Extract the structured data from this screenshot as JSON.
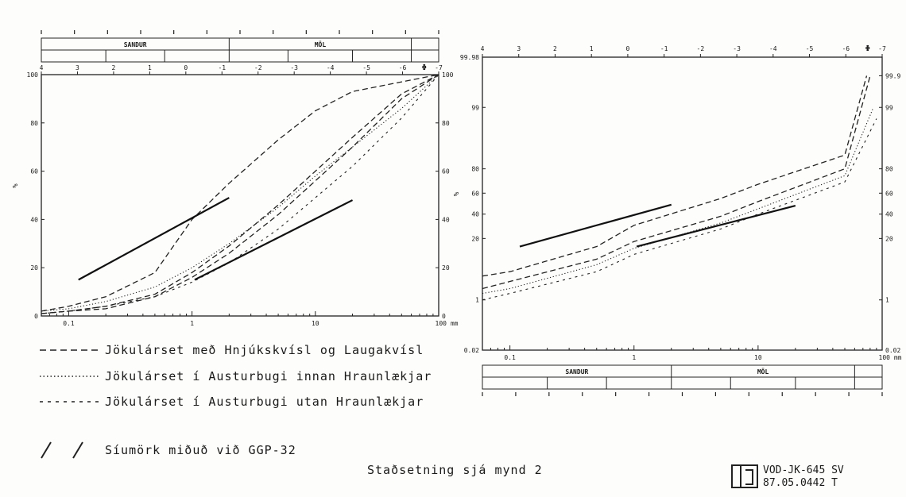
{
  "chart_data": [
    {
      "type": "line",
      "title": "",
      "ylabel": "%",
      "xscale": "log",
      "xlim": [
        0.06,
        100
      ],
      "ylim": [
        0,
        100
      ],
      "y_ticks": [
        "0",
        "20",
        "40",
        "60",
        "80",
        "100"
      ],
      "y2_ticks": [
        "0",
        "20",
        "40",
        "60",
        "80",
        "100"
      ],
      "x_ticks": [
        "0.1",
        "1",
        "10",
        "100 mm"
      ],
      "phi_ticks": [
        "4",
        "3",
        "2",
        "1",
        "0",
        "-1",
        "-2",
        "-3",
        "-4",
        "-5",
        "-6",
        "-7"
      ],
      "phi_label": "Φ",
      "size_bands": [
        "SANDUR",
        "MÖL"
      ],
      "series": [
        {
          "name": "Jökulárset með Hnjúkskvísl og Laugakvísl",
          "style": "dashed",
          "points": [
            [
              0.06,
              2
            ],
            [
              0.1,
              4
            ],
            [
              0.2,
              8
            ],
            [
              0.5,
              18
            ],
            [
              1,
              40
            ],
            [
              2,
              55
            ],
            [
              5,
              73
            ],
            [
              10,
              85
            ],
            [
              20,
              93
            ],
            [
              50,
              97
            ],
            [
              100,
              100
            ]
          ]
        },
        {
          "name": "Jökulárset með Hnjúkskvísl og Laugakvísl",
          "style": "dashed",
          "points": [
            [
              0.06,
              1
            ],
            [
              0.1,
              2
            ],
            [
              0.2,
              4
            ],
            [
              0.5,
              9
            ],
            [
              1,
              18
            ],
            [
              2,
              29
            ],
            [
              5,
              46
            ],
            [
              10,
              60
            ],
            [
              20,
              74
            ],
            [
              50,
              92
            ],
            [
              100,
              100
            ]
          ]
        },
        {
          "name": "Jökulárset með Hnjúkskvísl og Laugakvísl",
          "style": "dashed",
          "points": [
            [
              0.06,
              1
            ],
            [
              0.1,
              2
            ],
            [
              0.2,
              3
            ],
            [
              0.5,
              8
            ],
            [
              1,
              16
            ],
            [
              2,
              26
            ],
            [
              5,
              42
            ],
            [
              10,
              56
            ],
            [
              20,
              70
            ],
            [
              50,
              90
            ],
            [
              100,
              100
            ]
          ]
        },
        {
          "name": "Jökulárset í Austurbugi innan Hraunlækjar",
          "style": "dotted",
          "points": [
            [
              0.06,
              2
            ],
            [
              0.1,
              3
            ],
            [
              0.2,
              6
            ],
            [
              0.5,
              12
            ],
            [
              1,
              20
            ],
            [
              2,
              30
            ],
            [
              5,
              45
            ],
            [
              10,
              58
            ],
            [
              20,
              70
            ],
            [
              50,
              86
            ],
            [
              100,
              100
            ]
          ]
        },
        {
          "name": "Jökulárset í Austurbugi utan Hraunlækjar",
          "style": "dash-dot",
          "points": [
            [
              0.06,
              1
            ],
            [
              0.1,
              2
            ],
            [
              0.2,
              4
            ],
            [
              0.5,
              8
            ],
            [
              1,
              14
            ],
            [
              2,
              22
            ],
            [
              5,
              36
            ],
            [
              10,
              49
            ],
            [
              20,
              62
            ],
            [
              50,
              82
            ],
            [
              100,
              100
            ]
          ]
        }
      ],
      "limits": [
        {
          "name": "Síumörk miðuð við GGP-32",
          "points": [
            [
              0.12,
              15
            ],
            [
              2,
              49
            ]
          ]
        },
        {
          "name": "Síumörk miðuð við GGP-32",
          "points": [
            [
              1.05,
              15
            ],
            [
              20,
              48
            ]
          ]
        }
      ]
    },
    {
      "type": "line",
      "title": "",
      "ylabel": "%",
      "xscale": "log",
      "yscale": "probability",
      "xlim": [
        0.06,
        100
      ],
      "ylim": [
        0.02,
        99.98
      ],
      "y_ticks": [
        "0.02",
        "1",
        "20",
        "40",
        "60",
        "80",
        "99",
        "99.98"
      ],
      "y2_ticks": [
        "0.02",
        "1",
        "20",
        "40",
        "60",
        "80",
        "99",
        "99.9"
      ],
      "x_ticks": [
        "0.1",
        "1",
        "10",
        "100 mm"
      ],
      "phi_ticks": [
        "4",
        "3",
        "2",
        "1",
        "0",
        "-1",
        "-2",
        "-3",
        "-4",
        "-5",
        "-6",
        "-7"
      ],
      "phi_label": "Φ",
      "size_bands": [
        "SANDUR",
        "MÖL"
      ],
      "series": [
        {
          "name": "Jökulárset með Hnjúkskvísl og Laugakvísl",
          "style": "dashed",
          "points": [
            [
              0.06,
              4
            ],
            [
              0.1,
              5
            ],
            [
              0.5,
              15
            ],
            [
              1,
              30
            ],
            [
              5,
              55
            ],
            [
              10,
              68
            ],
            [
              50,
              88
            ],
            [
              75,
              99.9
            ]
          ]
        },
        {
          "name": "Jökulárset með Hnjúkskvísl og Laugakvísl",
          "style": "dashed",
          "points": [
            [
              0.06,
              2
            ],
            [
              0.1,
              3
            ],
            [
              0.5,
              9
            ],
            [
              1,
              18
            ],
            [
              5,
              38
            ],
            [
              10,
              52
            ],
            [
              50,
              80
            ],
            [
              80,
              99.9
            ]
          ]
        },
        {
          "name": "Jökulárset í Austurbugi innan Hraunlækjar",
          "style": "dotted",
          "points": [
            [
              0.06,
              1.5
            ],
            [
              0.1,
              2
            ],
            [
              0.5,
              7
            ],
            [
              1,
              14
            ],
            [
              5,
              32
            ],
            [
              10,
              45
            ],
            [
              50,
              75
            ],
            [
              85,
              99
            ]
          ]
        },
        {
          "name": "Jökulárset í Austurbugi utan Hraunlækjar",
          "style": "dash-dot",
          "points": [
            [
              0.06,
              1
            ],
            [
              0.1,
              1.5
            ],
            [
              0.5,
              5
            ],
            [
              1,
              11
            ],
            [
              5,
              27
            ],
            [
              10,
              40
            ],
            [
              50,
              70
            ],
            [
              90,
              98
            ]
          ]
        }
      ],
      "limits": [
        {
          "name": "Síumörk miðuð við GGP-32",
          "points": [
            [
              0.12,
              15
            ],
            [
              2,
              49
            ]
          ]
        },
        {
          "name": "Síumörk miðuð við GGP-32",
          "points": [
            [
              1.05,
              15
            ],
            [
              20,
              48
            ]
          ]
        }
      ]
    }
  ],
  "legend": {
    "dashed_label": "Jökulárset með Hnjúkskvísl og Laugakvísl",
    "dotted_label": "Jökulárset í Austurbugi innan Hraunlækjar",
    "dashdot_label": "Jökulárset í Austurbugi utan Hraunlækjar",
    "limit_label": "Síumörk miðuð við GGP-32"
  },
  "caption": "Staðsetning sjá mynd 2",
  "reference": {
    "line1": "VOD-JK-645 SV",
    "line2": "87.05.0442 T"
  }
}
